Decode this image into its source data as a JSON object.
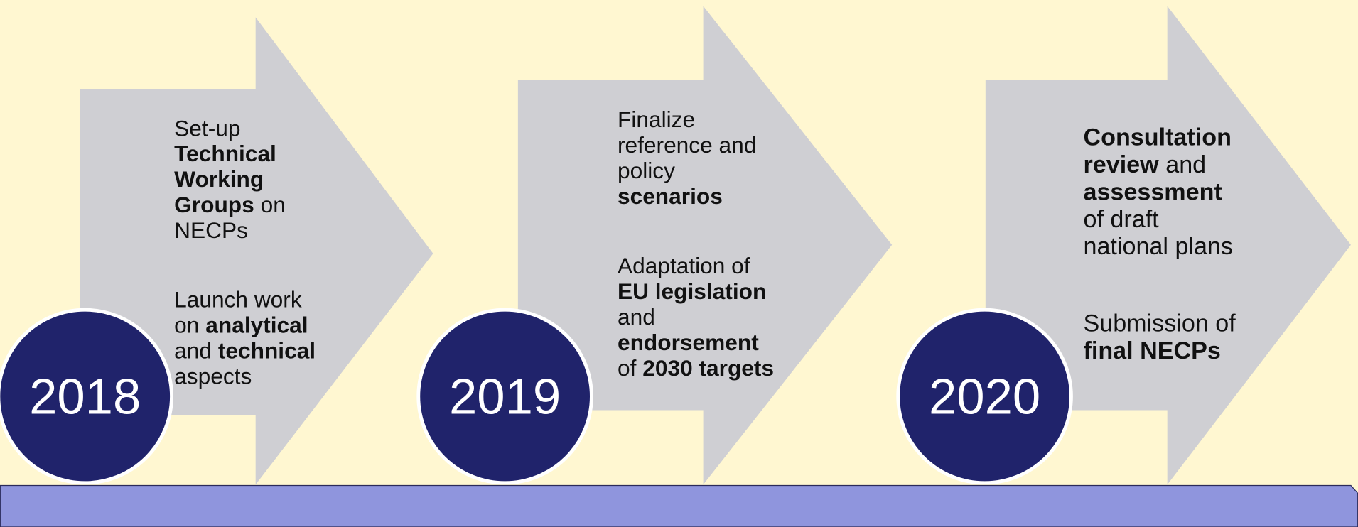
{
  "steps": [
    {
      "year": "2018",
      "paragraphs": [
        [
          [
            {
              "text": "Set-up"
            }
          ],
          [
            {
              "text": "Technical",
              "bold": true
            }
          ],
          [
            {
              "text": "Working",
              "bold": true
            }
          ],
          [
            {
              "text": "Groups",
              "bold": true
            },
            {
              "text": "on"
            }
          ],
          [
            {
              "text": "NECPs"
            }
          ]
        ],
        [
          [
            {
              "text": "Launch work"
            }
          ],
          [
            {
              "text": "on"
            },
            {
              "text": "analytical",
              "bold": true
            }
          ],
          [
            {
              "text": "and"
            },
            {
              "text": "technical",
              "bold": true
            }
          ],
          [
            {
              "text": "aspects"
            }
          ]
        ]
      ]
    },
    {
      "year": "2019",
      "paragraphs": [
        [
          [
            {
              "text": "Finalize"
            }
          ],
          [
            {
              "text": "reference and"
            }
          ],
          [
            {
              "text": "policy"
            }
          ],
          [
            {
              "text": "scenarios",
              "bold": true
            }
          ]
        ],
        [
          [
            {
              "text": "Adaptation of"
            }
          ],
          [
            {
              "text": "EU legislation",
              "bold": true
            }
          ],
          [
            {
              "text": "and"
            }
          ],
          [
            {
              "text": "endorsement",
              "bold": true
            }
          ],
          [
            {
              "text": "of"
            },
            {
              "text": "2030 targets",
              "bold": true
            }
          ]
        ]
      ]
    },
    {
      "year": "2020",
      "paragraphs": [
        [
          [
            {
              "text": "Consultation",
              "bold": true
            }
          ],
          [
            {
              "text": "review",
              "bold": true
            },
            {
              "text": "and"
            }
          ],
          [
            {
              "text": "assessment",
              "bold": true
            }
          ],
          [
            {
              "text": "of draft"
            }
          ],
          [
            {
              "text": "national plans"
            }
          ]
        ],
        [
          [
            {
              "text": "Submission of"
            }
          ],
          [
            {
              "text": "final NECPs",
              "bold": true
            }
          ]
        ]
      ]
    }
  ]
}
